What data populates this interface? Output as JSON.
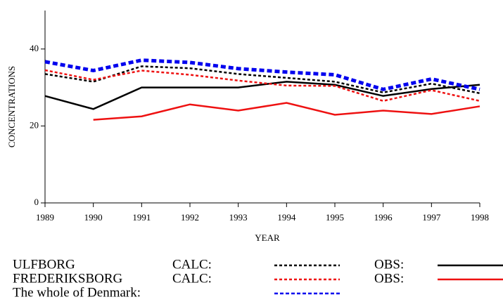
{
  "chart_data": {
    "type": "line",
    "x_label": "YEAR",
    "y_label": "CONCENTRATIONS",
    "x": [
      1989,
      1990,
      1991,
      1992,
      1993,
      1994,
      1995,
      1996,
      1997,
      1998
    ],
    "xlim": [
      1989,
      1998
    ],
    "xticks": [
      1989,
      1990,
      1991,
      1992,
      1993,
      1994,
      1995,
      1996,
      1997,
      1998
    ],
    "ylim": [
      0,
      50
    ],
    "yticks": [
      0,
      20,
      40
    ],
    "groups": [
      {
        "name": "ULFBORG",
        "series": [
          {
            "name": "CALC:",
            "color": "#000000",
            "dash": "dotted",
            "values": [
              33.5,
              31.5,
              35.5,
              35,
              33.5,
              32.5,
              31.5,
              28.7,
              31,
              28.5
            ]
          },
          {
            "name": "OBS:",
            "color": "#000000",
            "dash": "solid",
            "values": [
              27.8,
              24.4,
              30,
              30,
              30,
              31.5,
              30.7,
              27.8,
              29.6,
              30.7
            ]
          }
        ]
      },
      {
        "name": "FREDERIKSBORG",
        "series": [
          {
            "name": "CALC:",
            "color": "#ee1111",
            "dash": "dotted",
            "values": [
              34.5,
              32,
              34.4,
              33.3,
              31.8,
              30.5,
              30.4,
              26.5,
              29.3,
              26.5
            ]
          },
          {
            "name": "OBS:",
            "color": "#ee1111",
            "dash": "solid",
            "values": [
              null,
              21.6,
              22.5,
              25.6,
              24,
              26,
              22.9,
              24,
              23.1,
              25.1
            ]
          }
        ]
      },
      {
        "name": "The whole of Denmark:",
        "series": [
          {
            "color": "#0000ee",
            "dash": "dashed",
            "values": [
              36.7,
              34.4,
              37.1,
              36.5,
              34.9,
              34,
              33.3,
              29.5,
              32.2,
              29.5
            ]
          }
        ]
      }
    ]
  }
}
